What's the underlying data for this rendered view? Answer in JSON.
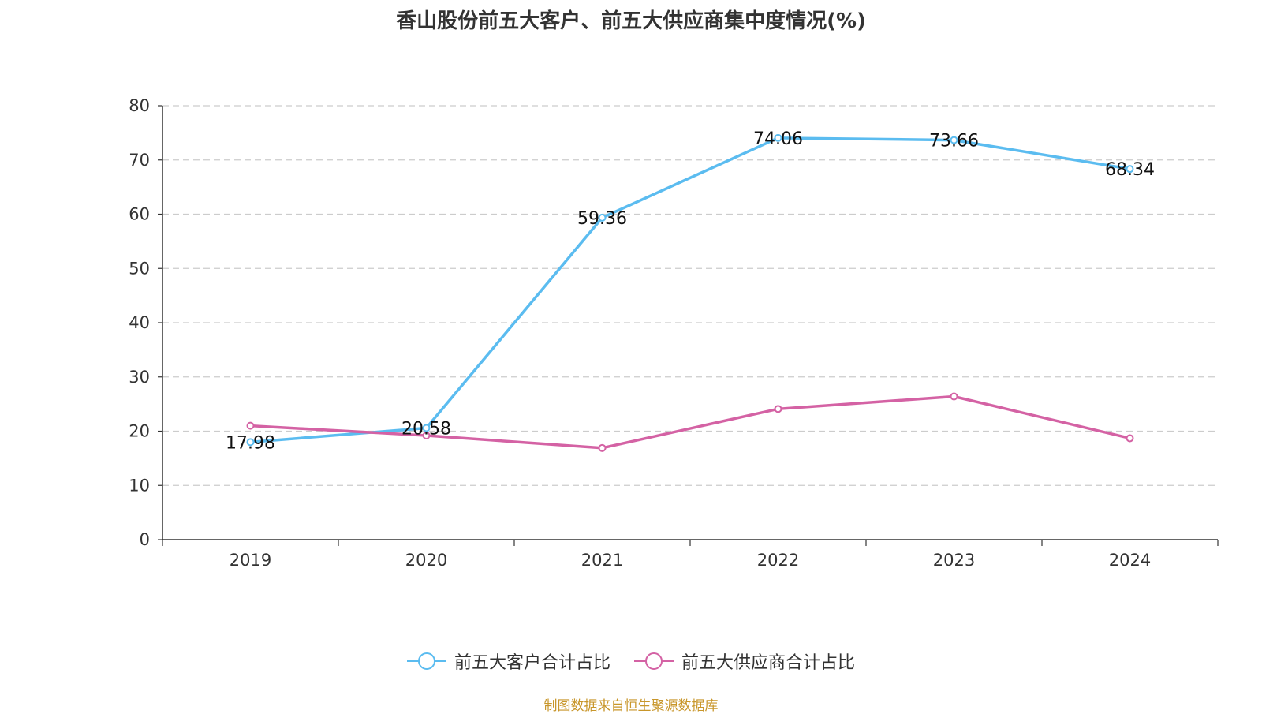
{
  "chart_data": {
    "type": "line",
    "title": "香山股份前五大客户、前五大供应商集中度情况(%)",
    "categories": [
      "2019",
      "2020",
      "2021",
      "2022",
      "2023",
      "2024"
    ],
    "ylim": [
      0,
      80
    ],
    "yticks": [
      0,
      10,
      20,
      30,
      40,
      50,
      60,
      70,
      80
    ],
    "grid": true,
    "legend_position": "bottom-center",
    "series": [
      {
        "name": "前五大客户合计占比",
        "color": "#5bbcf0",
        "values": [
          17.98,
          20.58,
          59.36,
          74.06,
          73.66,
          68.34
        ],
        "labels": [
          "17.98",
          "20.58",
          "59.36",
          "74.06",
          "73.66",
          "68.34"
        ]
      },
      {
        "name": "前五大供应商合计占比",
        "color": "#d462a4",
        "values": [
          21.0,
          19.2,
          16.9,
          24.1,
          26.4,
          18.7
        ]
      }
    ],
    "source": "制图数据来自恒生聚源数据库"
  }
}
